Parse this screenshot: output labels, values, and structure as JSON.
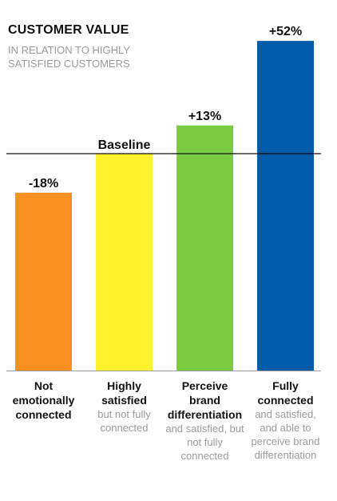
{
  "title": "CUSTOMER VALUE",
  "subtitle": "IN RELATION TO HIGHLY SATISFIED CUSTOMERS",
  "baseline_label": "Baseline",
  "categories": [
    {
      "bold": "Not emotionally connected",
      "detail": ""
    },
    {
      "bold": "Highly satisfied",
      "detail": "but not fully connected"
    },
    {
      "bold": "Perceive brand differentiation",
      "detail": "and satisfied, but not fully connected"
    },
    {
      "bold": "Fully connected",
      "detail": "and satisfied, and able to perceive brand differentiation"
    }
  ],
  "chart_data": {
    "type": "bar",
    "title": "CUSTOMER VALUE",
    "subtitle": "IN RELATION TO HIGHLY SATISFIED CUSTOMERS",
    "categories": [
      "Not emotionally connected",
      "Highly satisfied",
      "Perceive brand differentiation",
      "Fully connected"
    ],
    "values": [
      -18,
      0,
      13,
      52
    ],
    "value_labels": [
      "-18%",
      "",
      "+13%",
      "+52%"
    ],
    "unit": "%",
    "baseline": 0,
    "colors": [
      "#f7901e",
      "#fff22c",
      "#7ccc42",
      "#005baa"
    ]
  }
}
